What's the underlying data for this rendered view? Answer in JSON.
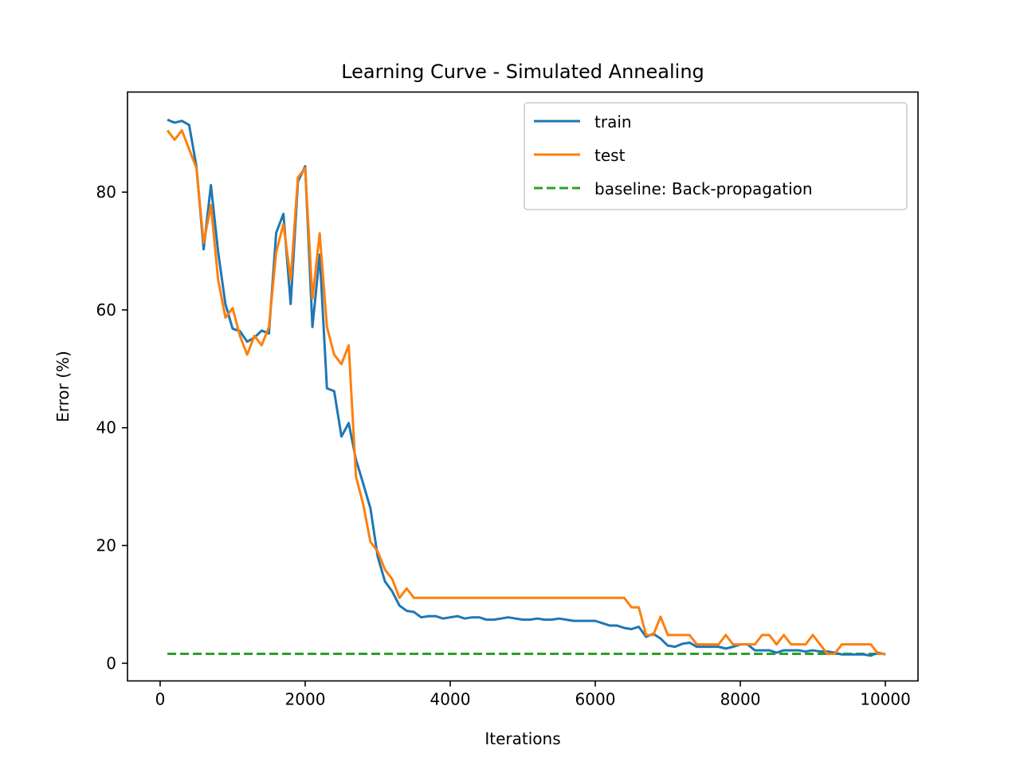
{
  "chart_data": {
    "type": "line",
    "title": "Learning Curve - Simulated Annealing",
    "xlabel": "Iterations",
    "ylabel": "Error (%)",
    "xlim": [
      -450,
      10450
    ],
    "ylim": [
      -3,
      97
    ],
    "xticks": [
      0,
      2000,
      4000,
      6000,
      8000,
      10000
    ],
    "yticks": [
      0,
      20,
      40,
      60,
      80
    ],
    "grid": false,
    "legend_position": "upper-right",
    "series": [
      {
        "name": "train",
        "color": "#1f77b4",
        "style": "solid",
        "x": [
          100,
          200,
          300,
          400,
          500,
          600,
          700,
          800,
          900,
          1000,
          1100,
          1200,
          1300,
          1400,
          1500,
          1600,
          1700,
          1800,
          1900,
          2000,
          2100,
          2200,
          2300,
          2400,
          2500,
          2600,
          2700,
          2800,
          2900,
          3000,
          3100,
          3200,
          3300,
          3400,
          3500,
          3600,
          3700,
          3800,
          3900,
          4000,
          4100,
          4200,
          4300,
          4400,
          4500,
          4600,
          4700,
          4800,
          4900,
          5000,
          5100,
          5200,
          5300,
          5400,
          5500,
          5600,
          5700,
          5800,
          5900,
          6000,
          6100,
          6200,
          6300,
          6400,
          6500,
          6600,
          6700,
          6800,
          6900,
          7000,
          7100,
          7200,
          7300,
          7400,
          7500,
          7600,
          7700,
          7800,
          7900,
          8000,
          8100,
          8200,
          8300,
          8400,
          8500,
          8600,
          8700,
          8800,
          8900,
          9000,
          9100,
          9200,
          9300,
          9400,
          9500,
          9600,
          9700,
          9800,
          9900,
          10000
        ],
        "y": [
          92.3,
          91.8,
          92.1,
          91.4,
          84.4,
          70.3,
          81.2,
          69.8,
          61.0,
          56.8,
          56.4,
          54.6,
          55.3,
          56.5,
          56.0,
          73.1,
          76.3,
          61.0,
          81.8,
          84.4,
          57.1,
          69.4,
          46.7,
          46.2,
          38.5,
          40.8,
          34.6,
          30.5,
          26.3,
          18.1,
          13.9,
          12.2,
          9.8,
          8.9,
          8.7,
          7.8,
          8.0,
          8.0,
          7.6,
          7.8,
          8.0,
          7.6,
          7.8,
          7.8,
          7.4,
          7.4,
          7.6,
          7.8,
          7.6,
          7.4,
          7.4,
          7.6,
          7.4,
          7.4,
          7.6,
          7.4,
          7.2,
          7.2,
          7.2,
          7.2,
          6.8,
          6.4,
          6.4,
          6.0,
          5.8,
          6.2,
          4.5,
          5.0,
          4.2,
          3.0,
          2.8,
          3.3,
          3.5,
          2.8,
          2.8,
          2.8,
          2.8,
          2.5,
          2.8,
          3.2,
          3.2,
          2.2,
          2.2,
          2.2,
          1.8,
          2.2,
          2.2,
          2.2,
          2.0,
          2.2,
          2.0,
          2.0,
          1.8,
          1.5,
          1.5,
          1.5,
          1.5,
          1.3,
          1.8,
          1.5
        ]
      },
      {
        "name": "test",
        "color": "#ff7f0e",
        "style": "solid",
        "x": [
          100,
          200,
          300,
          400,
          500,
          600,
          700,
          800,
          900,
          1000,
          1100,
          1200,
          1300,
          1400,
          1500,
          1600,
          1700,
          1800,
          1900,
          2000,
          2100,
          2200,
          2300,
          2400,
          2500,
          2600,
          2700,
          2800,
          2900,
          3000,
          3100,
          3200,
          3300,
          3400,
          3500,
          3600,
          3700,
          3800,
          3900,
          4000,
          4100,
          4200,
          4300,
          4400,
          4500,
          4600,
          4700,
          4800,
          4900,
          5000,
          5100,
          5200,
          5300,
          5400,
          5500,
          5600,
          5700,
          5800,
          5900,
          6000,
          6100,
          6200,
          6300,
          6400,
          6500,
          6600,
          6700,
          6800,
          6900,
          7000,
          7100,
          7200,
          7300,
          7400,
          7500,
          7600,
          7700,
          7800,
          7900,
          8000,
          8100,
          8200,
          8300,
          8400,
          8500,
          8600,
          8700,
          8800,
          8900,
          9000,
          9100,
          9200,
          9300,
          9400,
          9500,
          9600,
          9700,
          9800,
          9900,
          10000
        ],
        "y": [
          90.5,
          88.9,
          90.5,
          87.3,
          84.1,
          71.4,
          77.8,
          65.1,
          58.7,
          60.3,
          55.6,
          52.4,
          55.6,
          54.0,
          57.1,
          69.8,
          74.6,
          65.1,
          82.5,
          84.1,
          61.9,
          73.0,
          57.1,
          52.4,
          50.8,
          54.0,
          31.7,
          27.0,
          20.6,
          19.0,
          15.9,
          14.3,
          11.1,
          12.7,
          11.1,
          11.1,
          11.1,
          11.1,
          11.1,
          11.1,
          11.1,
          11.1,
          11.1,
          11.1,
          11.1,
          11.1,
          11.1,
          11.1,
          11.1,
          11.1,
          11.1,
          11.1,
          11.1,
          11.1,
          11.1,
          11.1,
          11.1,
          11.1,
          11.1,
          11.1,
          11.1,
          11.1,
          11.1,
          11.1,
          9.5,
          9.5,
          4.8,
          4.8,
          7.9,
          4.8,
          4.8,
          4.8,
          4.8,
          3.2,
          3.2,
          3.2,
          3.2,
          4.8,
          3.2,
          3.2,
          3.2,
          3.2,
          4.8,
          4.8,
          3.2,
          4.8,
          3.2,
          3.2,
          3.2,
          4.8,
          3.2,
          1.6,
          1.6,
          3.2,
          3.2,
          3.2,
          3.2,
          3.2,
          1.6,
          1.6
        ]
      },
      {
        "name": "baseline: Back-propagation",
        "color": "#2ca02c",
        "style": "dashed",
        "x": [
          100,
          10000
        ],
        "y": [
          1.6,
          1.6
        ]
      }
    ]
  }
}
